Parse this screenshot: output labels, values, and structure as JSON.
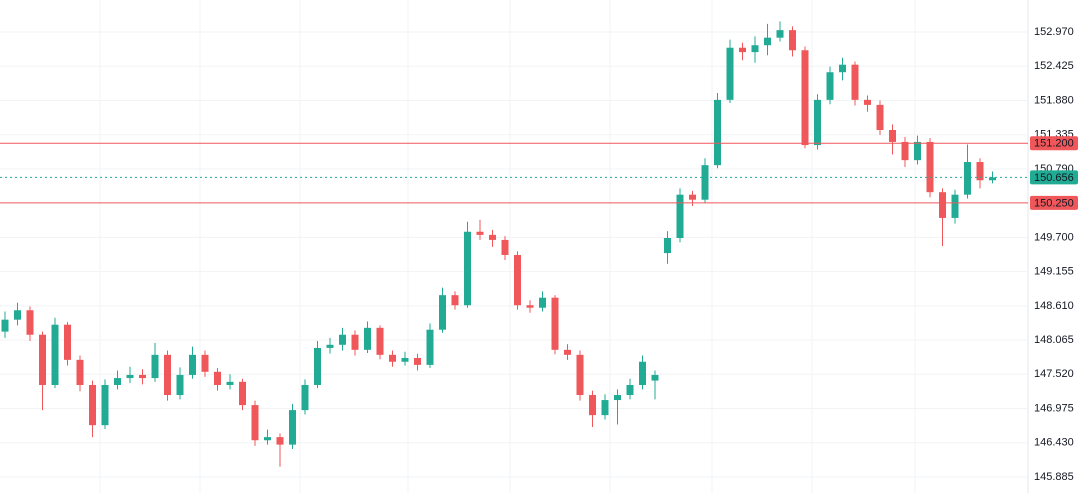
{
  "chart_data": {
    "type": "candlestick",
    "ylim": [
      145.63,
      153.48
    ],
    "yticks": [
      145.885,
      {
        "value": 146.43,
        "label": "146.430"
      },
      146.975,
      {
        "value": 147.52,
        "label": "147.520"
      },
      148.065,
      {
        "value": 148.61,
        "label": "148.610"
      },
      149.155,
      {
        "value": 149.7,
        "label": "149.700"
      },
      {
        "value": 150.79,
        "label": "150.790"
      },
      151.335,
      {
        "value": 151.88,
        "label": "151.880"
      },
      152.425,
      {
        "value": 152.97,
        "label": "152.970"
      }
    ],
    "grid": true,
    "up_color": "#22ab94",
    "down_color": "#f0575a",
    "open": [
      148.2,
      148.39,
      148.54,
      148.15,
      147.35,
      148.31,
      147.75,
      147.35,
      146.71,
      147.35,
      147.46,
      147.51,
      147.46,
      147.83,
      147.19,
      147.51,
      147.83,
      147.56,
      147.35,
      147.4,
      147.03,
      146.47,
      146.52,
      146.4,
      146.95,
      147.35,
      147.94,
      147.99,
      148.15,
      147.91,
      148.26,
      147.83,
      147.72,
      147.78,
      147.67,
      148.23,
      148.78,
      148.62,
      149.79,
      149.74,
      149.66,
      149.42,
      148.62,
      148.58,
      148.74,
      147.91,
      147.83,
      147.19,
      146.87,
      147.11,
      147.19,
      147.35,
      147.42,
      149.45,
      149.69,
      150.38,
      150.3,
      150.85,
      151.89,
      152.72,
      152.65,
      152.76,
      152.88,
      153.0,
      152.68,
      151.17,
      151.89,
      152.33,
      152.45,
      151.89,
      151.81,
      151.41,
      151.22,
      150.93,
      151.22,
      150.42,
      150.01,
      150.38,
      150.9,
      150.61
    ],
    "high": [
      148.52,
      148.66,
      148.6,
      148.2,
      148.42,
      148.35,
      147.82,
      147.42,
      147.44,
      147.58,
      147.64,
      147.6,
      148.02,
      147.9,
      147.63,
      147.96,
      147.9,
      147.62,
      147.52,
      147.45,
      147.1,
      146.64,
      146.58,
      147.05,
      147.44,
      148.05,
      148.1,
      148.26,
      148.22,
      148.36,
      148.3,
      147.9,
      147.88,
      147.85,
      148.33,
      148.9,
      148.84,
      149.95,
      149.98,
      149.82,
      149.72,
      149.48,
      148.7,
      148.84,
      148.78,
      148.0,
      147.9,
      147.26,
      147.2,
      147.28,
      147.45,
      147.82,
      147.58,
      149.8,
      150.48,
      150.44,
      150.96,
      152.0,
      152.85,
      152.8,
      152.9,
      153.1,
      153.14,
      153.06,
      152.74,
      151.98,
      152.42,
      152.56,
      152.5,
      151.96,
      151.88,
      151.5,
      151.3,
      151.32,
      151.28,
      150.48,
      150.46,
      151.18,
      150.96,
      150.75
    ],
    "low": [
      148.1,
      148.3,
      148.05,
      146.95,
      147.3,
      147.66,
      147.25,
      146.52,
      146.65,
      147.28,
      147.38,
      147.36,
      147.4,
      147.1,
      147.12,
      147.45,
      147.48,
      147.26,
      147.28,
      146.95,
      146.38,
      146.4,
      146.05,
      146.33,
      146.88,
      147.3,
      147.85,
      147.9,
      147.82,
      147.86,
      147.76,
      147.64,
      147.66,
      147.58,
      147.62,
      148.18,
      148.55,
      148.58,
      149.66,
      149.55,
      149.34,
      148.55,
      148.5,
      148.52,
      147.84,
      147.75,
      147.1,
      146.68,
      146.8,
      146.72,
      147.12,
      147.28,
      147.12,
      149.28,
      149.62,
      150.2,
      150.25,
      150.8,
      151.84,
      152.52,
      152.48,
      152.6,
      152.82,
      152.58,
      151.12,
      151.1,
      151.82,
      152.2,
      151.8,
      151.7,
      151.33,
      151.02,
      150.82,
      150.86,
      150.34,
      149.56,
      149.92,
      150.32,
      150.48,
      150.56
    ],
    "close": [
      148.39,
      148.54,
      148.15,
      147.35,
      148.31,
      147.75,
      147.35,
      146.71,
      147.35,
      147.46,
      147.51,
      147.46,
      147.83,
      147.19,
      147.51,
      147.83,
      147.56,
      147.35,
      147.4,
      147.03,
      146.47,
      146.52,
      146.4,
      146.95,
      147.35,
      147.94,
      147.99,
      148.15,
      147.91,
      148.26,
      147.83,
      147.72,
      147.78,
      147.67,
      148.23,
      148.78,
      148.62,
      149.79,
      149.74,
      149.66,
      149.42,
      148.62,
      148.58,
      148.74,
      147.91,
      147.83,
      147.19,
      146.87,
      147.11,
      147.19,
      147.35,
      147.72,
      147.51,
      149.69,
      150.38,
      150.3,
      150.85,
      151.89,
      152.72,
      152.65,
      152.76,
      152.88,
      153.0,
      152.68,
      151.17,
      151.89,
      152.33,
      152.45,
      151.89,
      151.81,
      151.41,
      151.22,
      150.93,
      151.22,
      150.42,
      150.01,
      150.38,
      150.9,
      150.61,
      150.656
    ],
    "levels": [
      {
        "value": 151.2,
        "label": "151.200",
        "color": "#f0575a",
        "style": "solid"
      },
      {
        "value": 150.656,
        "color": "#22ab94",
        "style": "dotted"
      },
      {
        "value": 150.25,
        "label": "150.250",
        "color": "#f0575a",
        "style": "solid"
      }
    ]
  }
}
